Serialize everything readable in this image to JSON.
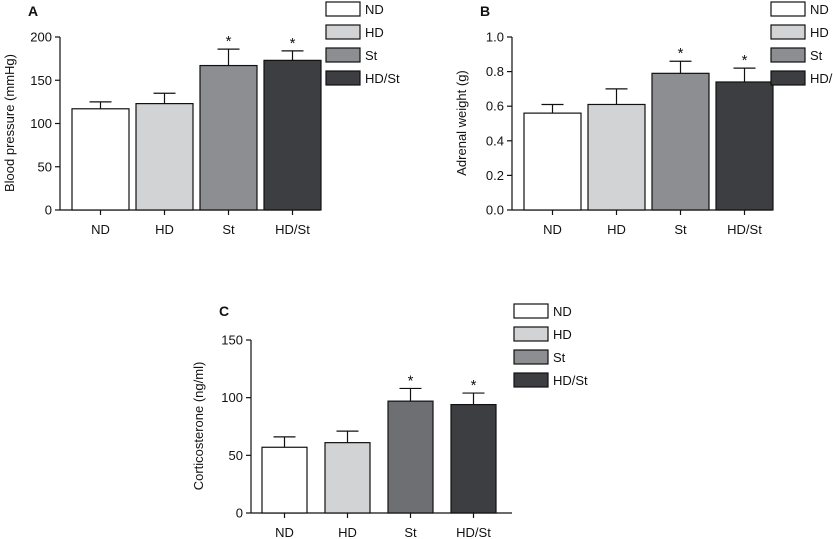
{
  "legend": {
    "entries": [
      {
        "label": "ND",
        "color": "#ffffff"
      },
      {
        "label": "HD",
        "color": "#d2d3d5"
      },
      {
        "label": "St",
        "color": "#8d8e92"
      },
      {
        "label": "HD/St",
        "color": "#3d3e41"
      }
    ]
  },
  "chart_data": [
    {
      "type": "bar",
      "panel": "A",
      "categories": [
        "ND",
        "HD",
        "St",
        "HD/St"
      ],
      "values": [
        117,
        123,
        167,
        173
      ],
      "errors": [
        8,
        12,
        19,
        11
      ],
      "significance": [
        "",
        "",
        "*",
        "*"
      ],
      "colors": [
        "#ffffff",
        "#d2d3d5",
        "#8d8e92",
        "#3d3e41"
      ],
      "ylabel": "Blood pressure (mmHg)",
      "ylim": [
        0,
        200
      ],
      "yticks": [
        "0",
        "50",
        "100",
        "150",
        "200"
      ],
      "grid": false,
      "legend_position": "top-right"
    },
    {
      "type": "bar",
      "panel": "B",
      "categories": [
        "ND",
        "HD",
        "St",
        "HD/St"
      ],
      "values": [
        0.56,
        0.61,
        0.79,
        0.74
      ],
      "errors": [
        0.05,
        0.09,
        0.07,
        0.08
      ],
      "significance": [
        "",
        "",
        "*",
        "*"
      ],
      "colors": [
        "#ffffff",
        "#d2d3d5",
        "#8d8e92",
        "#3d3e41"
      ],
      "ylabel": "Adrenal weight (g)",
      "ylim": [
        0,
        1.0
      ],
      "yticks": [
        "0.0",
        "0.2",
        "0.4",
        "0.6",
        "0.8",
        "1.0"
      ],
      "grid": false,
      "legend_position": "top-right"
    },
    {
      "type": "bar",
      "panel": "C",
      "categories": [
        "ND",
        "HD",
        "St",
        "HD/St"
      ],
      "values": [
        57,
        61,
        97,
        94
      ],
      "errors": [
        9,
        10,
        11,
        10
      ],
      "significance": [
        "",
        "",
        "*",
        "*"
      ],
      "colors": [
        "#ffffff",
        "#d2d3d5",
        "#6e6f73",
        "#3d3e41"
      ],
      "ylabel": "Corticosterone (ng/ml)",
      "ylim": [
        0,
        150
      ],
      "yticks": [
        "0",
        "50",
        "100",
        "150"
      ],
      "grid": false,
      "legend_position": "top-right"
    }
  ]
}
